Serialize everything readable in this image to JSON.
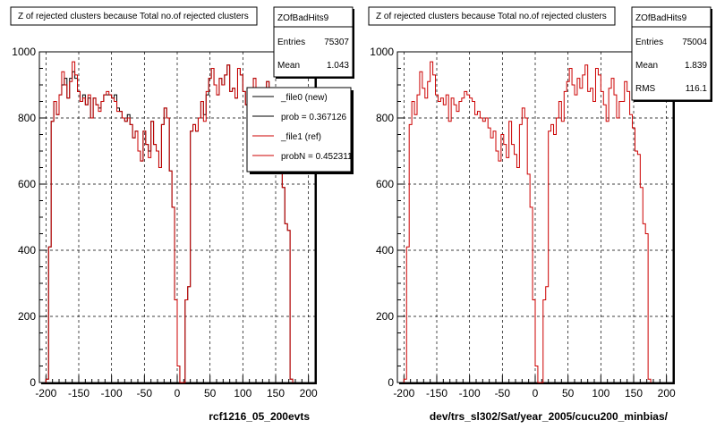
{
  "chart_data": [
    {
      "type": "histogram",
      "title": "Z of rejected clusters  because Total no.of rejected clusters",
      "xlabel": "rcf1216_05_200evts",
      "xlim": [
        -210,
        210
      ],
      "ylim": [
        0,
        1000
      ],
      "xticks": [
        -200,
        -150,
        -100,
        -50,
        0,
        50,
        100,
        150,
        200
      ],
      "yticks": [
        0,
        200,
        400,
        600,
        800,
        1000
      ],
      "grid": true,
      "stats": {
        "name": "ZOfBadHits9",
        "rows": [
          {
            "label": "Entries",
            "value": "75307"
          },
          {
            "label": "Mean",
            "value": "1.043"
          }
        ]
      },
      "legend": {
        "placement": "top-right",
        "entries": [
          {
            "text": "_file0 (new)",
            "color": "#000000"
          },
          {
            "text": "prob = 0.367126",
            "color": "#000000"
          },
          {
            "text": "_file1 (ref)",
            "color": "#cc0000"
          },
          {
            "text": "probN = 0.452311",
            "color": "#cc0000"
          }
        ]
      },
      "series": [
        {
          "name": "_file0 (new)",
          "color": "#000000"
        },
        {
          "name": "_file1 (ref)",
          "color": "#cc0000"
        }
      ]
    },
    {
      "type": "histogram",
      "title": "Z of rejected clusters  because Total no.of rejected clusters",
      "xlabel": "dev/trs_sl302/Sat/year_2005/cucu200_minbias/",
      "xlim": [
        -210,
        210
      ],
      "ylim": [
        0,
        1000
      ],
      "xticks": [
        -200,
        -150,
        -100,
        -50,
        0,
        50,
        100,
        150,
        200
      ],
      "yticks": [
        0,
        200,
        400,
        600,
        800,
        1000
      ],
      "grid": true,
      "stats": {
        "name": "ZOfBadHits9",
        "rows": [
          {
            "label": "Entries",
            "value": "75004"
          },
          {
            "label": "Mean",
            "value": "1.839"
          },
          {
            "label": "RMS",
            "value": "116.1"
          }
        ]
      },
      "series": [
        {
          "name": "",
          "color": "#cc0000"
        }
      ]
    }
  ],
  "histogram": {
    "bin_width": 4,
    "x_start": -200,
    "ref_values": [
      10,
      410,
      790,
      850,
      810,
      870,
      940,
      900,
      860,
      910,
      970,
      930,
      880,
      850,
      860,
      840,
      870,
      800,
      860,
      840,
      820,
      850,
      870,
      880,
      870,
      860,
      850,
      820,
      820,
      800,
      790,
      800,
      780,
      740,
      760,
      700,
      670,
      760,
      720,
      680,
      790,
      720,
      700,
      650,
      780,
      830,
      800,
      640,
      530,
      250,
      50,
      0,
      0,
      250,
      290,
      760,
      780,
      760,
      800,
      850,
      790,
      880,
      920,
      950,
      900,
      870,
      920,
      900,
      930,
      960,
      880,
      890,
      860,
      950,
      930,
      880,
      840,
      800,
      890,
      920,
      870,
      800,
      860,
      850,
      910,
      880,
      810,
      780,
      700,
      690,
      590,
      480,
      460,
      10
    ],
    "new_offsets": [
      0,
      0,
      0,
      0,
      0,
      0,
      -40,
      20,
      0,
      10,
      -30,
      -10,
      0,
      0,
      10,
      0,
      -10,
      0,
      0,
      0,
      10,
      0,
      0,
      -10,
      0,
      0,
      20,
      10,
      0,
      0,
      0,
      10,
      0,
      0,
      0,
      0,
      0,
      0,
      0,
      20,
      0,
      0,
      0,
      0,
      0,
      0,
      0,
      0,
      0,
      0,
      0,
      0,
      0,
      0,
      0,
      0,
      0,
      0,
      0,
      0,
      20,
      -10,
      0,
      0,
      0,
      0,
      0,
      0,
      0,
      0,
      0,
      0,
      0,
      0,
      0,
      0,
      0,
      0,
      0,
      0,
      0,
      0,
      0,
      0,
      0,
      0,
      0,
      0,
      0,
      0,
      0,
      0,
      0
    ]
  }
}
